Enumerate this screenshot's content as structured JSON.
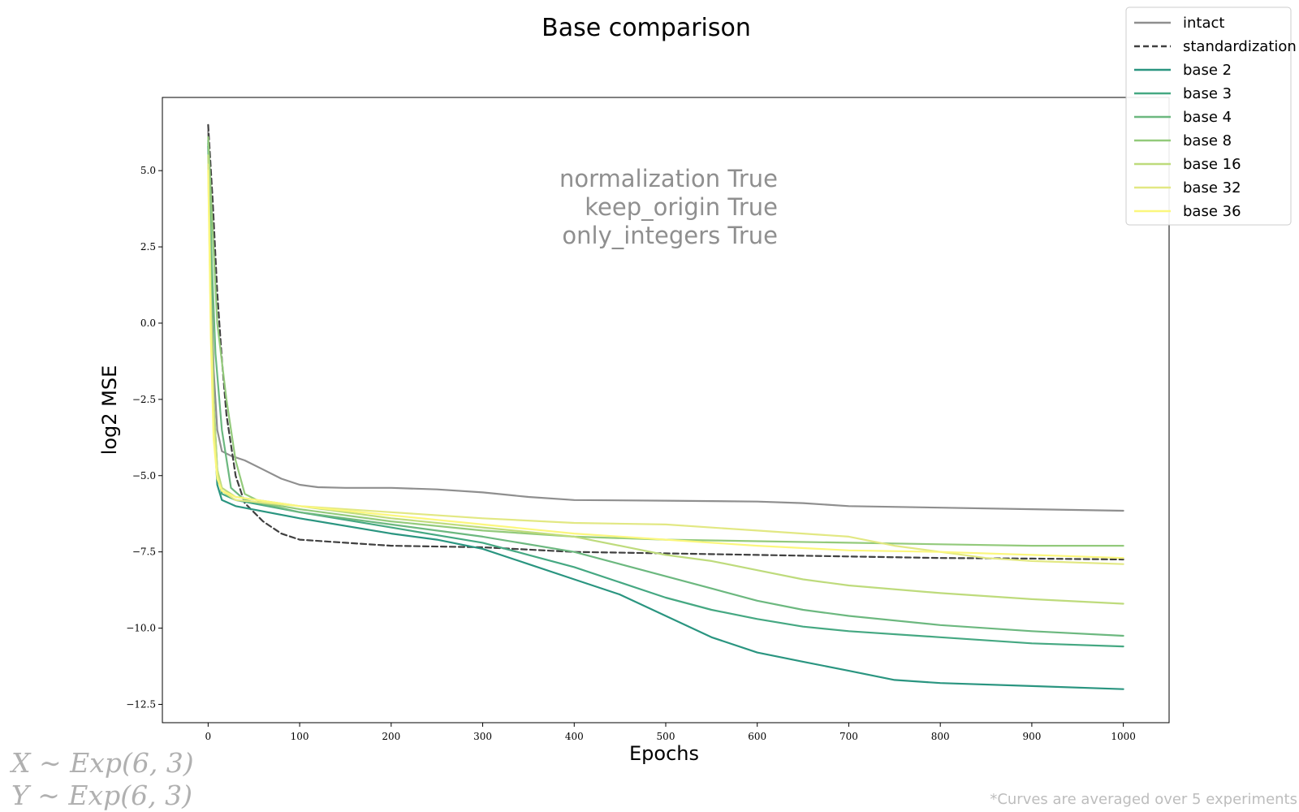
{
  "chart_data": {
    "type": "line",
    "title": "Base comparison",
    "xlabel": "Epochs",
    "ylabel": "log2 MSE",
    "xlim": [
      -50,
      1050
    ],
    "ylim": [
      -13.1,
      7.4
    ],
    "xticks": [
      0,
      100,
      200,
      300,
      400,
      500,
      600,
      700,
      800,
      900,
      1000
    ],
    "yticks": [
      5.0,
      2.5,
      0.0,
      -2.5,
      -5.0,
      -7.5,
      -10.0,
      -12.5
    ],
    "ytick_labels": [
      "5.0",
      "2.5",
      "0.0",
      "−2.5",
      "−5.0",
      "−7.5",
      "−10.0",
      "−12.5"
    ],
    "legend_position": "top-right",
    "grid": false,
    "annotations": [
      "normalization True",
      "keep_origin True",
      "only_integers True"
    ],
    "formulas": [
      "X ∼ Exp(6, 3)",
      "Y ∼ Exp(6, 3)"
    ],
    "footnote": "*Curves are averaged over 5 experiments",
    "series": [
      {
        "name": "intact",
        "color": "#8f8f8f",
        "dash": "solid",
        "points": [
          [
            0,
            6.3
          ],
          [
            3,
            2.0
          ],
          [
            6,
            -1.5
          ],
          [
            10,
            -3.5
          ],
          [
            15,
            -4.2
          ],
          [
            25,
            -4.35
          ],
          [
            40,
            -4.5
          ],
          [
            60,
            -4.8
          ],
          [
            80,
            -5.1
          ],
          [
            100,
            -5.3
          ],
          [
            120,
            -5.38
          ],
          [
            150,
            -5.4
          ],
          [
            200,
            -5.4
          ],
          [
            250,
            -5.45
          ],
          [
            300,
            -5.55
          ],
          [
            350,
            -5.7
          ],
          [
            400,
            -5.8
          ],
          [
            500,
            -5.82
          ],
          [
            600,
            -5.85
          ],
          [
            650,
            -5.9
          ],
          [
            700,
            -6.0
          ],
          [
            800,
            -6.05
          ],
          [
            900,
            -6.1
          ],
          [
            1000,
            -6.15
          ]
        ]
      },
      {
        "name": "standardization",
        "color": "#404040",
        "dash": "dashed",
        "points": [
          [
            0,
            6.5
          ],
          [
            5,
            4.0
          ],
          [
            10,
            1.0
          ],
          [
            15,
            -1.2
          ],
          [
            20,
            -3.0
          ],
          [
            30,
            -5.0
          ],
          [
            40,
            -5.9
          ],
          [
            60,
            -6.5
          ],
          [
            80,
            -6.9
          ],
          [
            100,
            -7.1
          ],
          [
            150,
            -7.2
          ],
          [
            200,
            -7.3
          ],
          [
            300,
            -7.35
          ],
          [
            400,
            -7.5
          ],
          [
            500,
            -7.55
          ],
          [
            600,
            -7.6
          ],
          [
            700,
            -7.65
          ],
          [
            800,
            -7.7
          ],
          [
            900,
            -7.72
          ],
          [
            1000,
            -7.75
          ]
        ]
      },
      {
        "name": "base 2",
        "color": "#2a9580",
        "dash": "solid",
        "points": [
          [
            0,
            5.8
          ],
          [
            3,
            1.0
          ],
          [
            6,
            -3.0
          ],
          [
            10,
            -5.3
          ],
          [
            15,
            -5.8
          ],
          [
            30,
            -6.0
          ],
          [
            100,
            -6.4
          ],
          [
            200,
            -6.9
          ],
          [
            250,
            -7.1
          ],
          [
            300,
            -7.4
          ],
          [
            350,
            -7.9
          ],
          [
            400,
            -8.4
          ],
          [
            450,
            -8.9
          ],
          [
            500,
            -9.6
          ],
          [
            550,
            -10.3
          ],
          [
            600,
            -10.8
          ],
          [
            650,
            -11.1
          ],
          [
            700,
            -11.4
          ],
          [
            750,
            -11.7
          ],
          [
            800,
            -11.8
          ],
          [
            900,
            -11.9
          ],
          [
            1000,
            -12.0
          ]
        ]
      },
      {
        "name": "base 3",
        "color": "#45a882",
        "dash": "solid",
        "points": [
          [
            0,
            6.0
          ],
          [
            3,
            1.5
          ],
          [
            6,
            -2.5
          ],
          [
            10,
            -4.8
          ],
          [
            15,
            -5.6
          ],
          [
            30,
            -5.8
          ],
          [
            100,
            -6.2
          ],
          [
            200,
            -6.7
          ],
          [
            300,
            -7.2
          ],
          [
            350,
            -7.6
          ],
          [
            400,
            -8.0
          ],
          [
            450,
            -8.5
          ],
          [
            500,
            -9.0
          ],
          [
            550,
            -9.4
          ],
          [
            600,
            -9.7
          ],
          [
            650,
            -9.95
          ],
          [
            700,
            -10.1
          ],
          [
            800,
            -10.3
          ],
          [
            900,
            -10.5
          ],
          [
            1000,
            -10.6
          ]
        ]
      },
      {
        "name": "base 4",
        "color": "#6cb87f",
        "dash": "solid",
        "points": [
          [
            0,
            5.9
          ],
          [
            4,
            2.0
          ],
          [
            8,
            -1.0
          ],
          [
            15,
            -3.5
          ],
          [
            25,
            -5.4
          ],
          [
            40,
            -5.8
          ],
          [
            100,
            -6.2
          ],
          [
            200,
            -6.6
          ],
          [
            300,
            -7.0
          ],
          [
            400,
            -7.5
          ],
          [
            450,
            -7.9
          ],
          [
            500,
            -8.3
          ],
          [
            550,
            -8.7
          ],
          [
            600,
            -9.1
          ],
          [
            650,
            -9.4
          ],
          [
            700,
            -9.6
          ],
          [
            800,
            -9.9
          ],
          [
            900,
            -10.1
          ],
          [
            1000,
            -10.25
          ]
        ]
      },
      {
        "name": "base 8",
        "color": "#93ca7b",
        "dash": "solid",
        "points": [
          [
            0,
            6.1
          ],
          [
            5,
            3.0
          ],
          [
            10,
            0.0
          ],
          [
            20,
            -2.5
          ],
          [
            30,
            -4.5
          ],
          [
            40,
            -5.6
          ],
          [
            60,
            -5.9
          ],
          [
            100,
            -6.1
          ],
          [
            200,
            -6.5
          ],
          [
            300,
            -6.8
          ],
          [
            400,
            -7.0
          ],
          [
            500,
            -7.1
          ],
          [
            600,
            -7.15
          ],
          [
            700,
            -7.2
          ],
          [
            800,
            -7.25
          ],
          [
            900,
            -7.3
          ],
          [
            1000,
            -7.3
          ]
        ]
      },
      {
        "name": "base 16",
        "color": "#bedb7c",
        "dash": "solid",
        "points": [
          [
            0,
            5.5
          ],
          [
            3,
            1.0
          ],
          [
            6,
            -2.5
          ],
          [
            10,
            -4.8
          ],
          [
            15,
            -5.4
          ],
          [
            30,
            -5.7
          ],
          [
            100,
            -6.0
          ],
          [
            200,
            -6.4
          ],
          [
            300,
            -6.7
          ],
          [
            400,
            -7.0
          ],
          [
            450,
            -7.3
          ],
          [
            500,
            -7.6
          ],
          [
            550,
            -7.8
          ],
          [
            600,
            -8.1
          ],
          [
            650,
            -8.4
          ],
          [
            700,
            -8.6
          ],
          [
            800,
            -8.85
          ],
          [
            900,
            -9.05
          ],
          [
            1000,
            -9.2
          ]
        ]
      },
      {
        "name": "base 32",
        "color": "#e2e883",
        "dash": "solid",
        "points": [
          [
            0,
            5.2
          ],
          [
            3,
            0.0
          ],
          [
            6,
            -3.5
          ],
          [
            10,
            -5.0
          ],
          [
            15,
            -5.5
          ],
          [
            30,
            -5.8
          ],
          [
            100,
            -6.0
          ],
          [
            200,
            -6.2
          ],
          [
            300,
            -6.4
          ],
          [
            400,
            -6.55
          ],
          [
            500,
            -6.6
          ],
          [
            600,
            -6.8
          ],
          [
            700,
            -7.0
          ],
          [
            750,
            -7.3
          ],
          [
            800,
            -7.5
          ],
          [
            850,
            -7.7
          ],
          [
            900,
            -7.8
          ],
          [
            1000,
            -7.9
          ]
        ]
      },
      {
        "name": "base 36",
        "color": "#fbf77d",
        "dash": "solid",
        "points": [
          [
            0,
            5.0
          ],
          [
            3,
            -0.5
          ],
          [
            6,
            -3.8
          ],
          [
            10,
            -5.1
          ],
          [
            15,
            -5.5
          ],
          [
            30,
            -5.7
          ],
          [
            100,
            -6.0
          ],
          [
            200,
            -6.3
          ],
          [
            300,
            -6.6
          ],
          [
            400,
            -6.9
          ],
          [
            500,
            -7.1
          ],
          [
            600,
            -7.3
          ],
          [
            700,
            -7.45
          ],
          [
            800,
            -7.5
          ],
          [
            900,
            -7.6
          ],
          [
            1000,
            -7.7
          ]
        ]
      }
    ]
  }
}
